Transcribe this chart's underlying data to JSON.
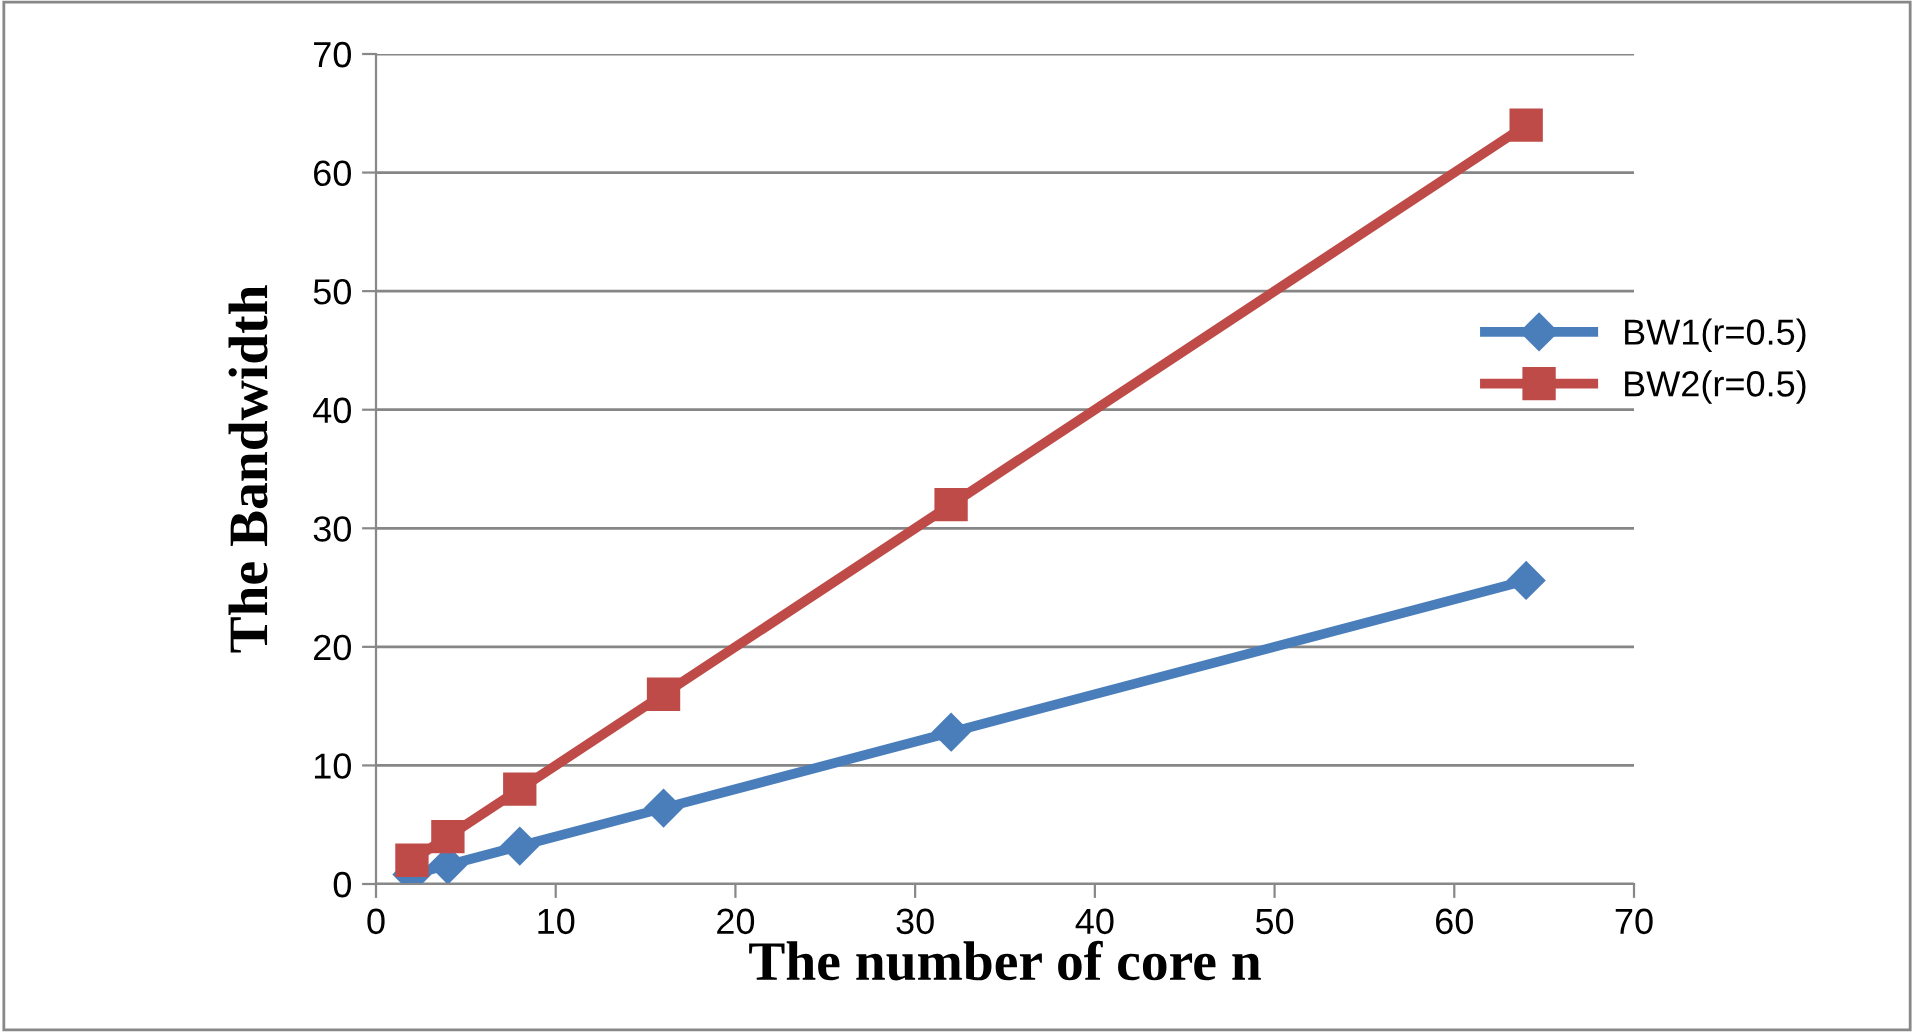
{
  "chart_data": {
    "type": "line",
    "xlabel": "The number of core n",
    "ylabel": "The Bandwidth",
    "x": [
      2,
      4,
      8,
      16,
      32,
      64
    ],
    "series": [
      {
        "name": "BW1(r=0.5)",
        "color": "#4a7ebb",
        "values": [
          0.8,
          1.6,
          3.2,
          6.4,
          12.8,
          25.6
        ],
        "marker": "diamond"
      },
      {
        "name": "BW2(r=0.5)",
        "color": "#be4b48",
        "values": [
          2,
          4,
          8,
          16,
          32,
          64
        ],
        "marker": "square"
      }
    ],
    "xlim": [
      0,
      70
    ],
    "xticks": [
      0,
      10,
      20,
      30,
      40,
      50,
      60,
      70
    ],
    "ylim": [
      0,
      70
    ],
    "yticks": [
      0,
      10,
      20,
      30,
      40,
      50,
      60,
      70
    ],
    "grid": "y",
    "legend": "right",
    "line_style": "solid"
  }
}
